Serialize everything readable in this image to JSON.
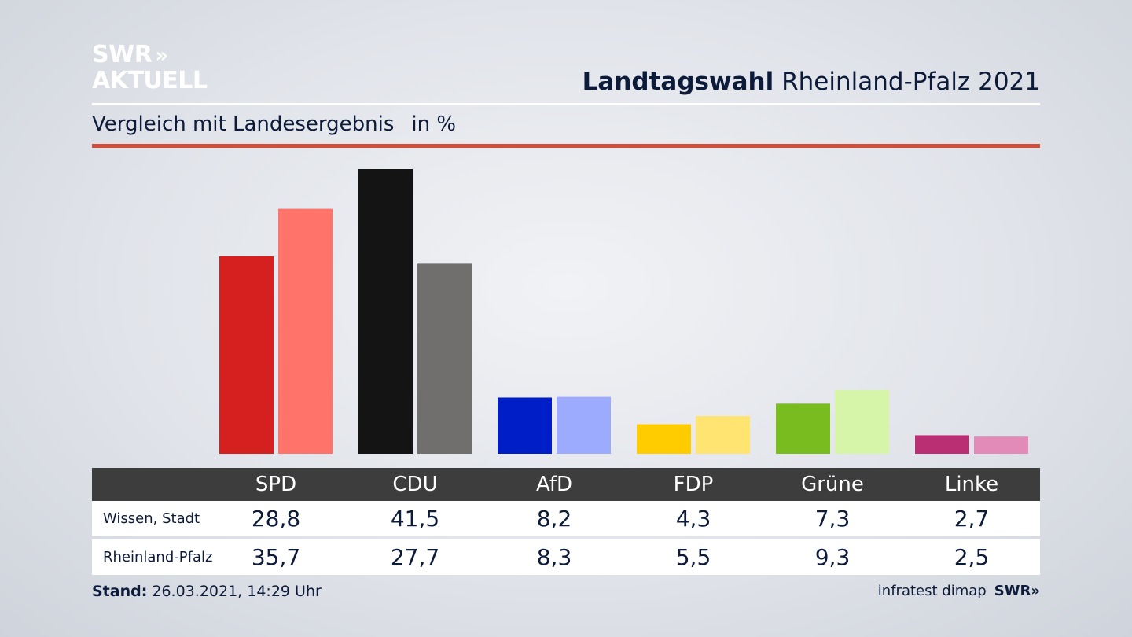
{
  "logo": {
    "line1": "SWR",
    "chevrons": "»",
    "line2": "AKTUELL"
  },
  "header": {
    "title_bold": "Landtagswahl",
    "title_rest": "Rheinland-Pfalz 2021"
  },
  "subheader": {
    "label": "Vergleich mit Landesergebnis",
    "unit": "in %"
  },
  "chart_data": {
    "type": "bar",
    "title": "Landtagswahl Rheinland-Pfalz 2021",
    "subtitle": "Vergleich mit Landesergebnis",
    "unit": "in %",
    "categories": [
      "SPD",
      "CDU",
      "AfD",
      "FDP",
      "Grüne",
      "Linke"
    ],
    "series": [
      {
        "name": "Wissen, Stadt",
        "values": [
          28.8,
          41.5,
          8.2,
          4.3,
          7.3,
          2.7
        ],
        "display": [
          "28,8",
          "41,5",
          "8,2",
          "4,3",
          "7,3",
          "2,7"
        ]
      },
      {
        "name": "Rheinland-Pfalz",
        "values": [
          35.7,
          27.7,
          8.3,
          5.5,
          9.3,
          2.5
        ],
        "display": [
          "35,7",
          "27,7",
          "8,3",
          "5,5",
          "9,3",
          "2,5"
        ]
      }
    ],
    "colors": {
      "SPD": [
        "#d61f1f",
        "#ff736b"
      ],
      "CDU": [
        "#141414",
        "#706f6d"
      ],
      "AfD": [
        "#001ec8",
        "#9dabff"
      ],
      "FDP": [
        "#ffcc00",
        "#ffe472"
      ],
      "Grüne": [
        "#79bc1f",
        "#d6f5a8"
      ],
      "Linke": [
        "#ba2f73",
        "#e38bb8"
      ]
    },
    "ylim": [
      0,
      41.5
    ]
  },
  "footer": {
    "stand_label": "Stand:",
    "stand_value": "26.03.2021, 14:29 Uhr",
    "source": "infratest dimap",
    "source_logo": "SWR»"
  }
}
